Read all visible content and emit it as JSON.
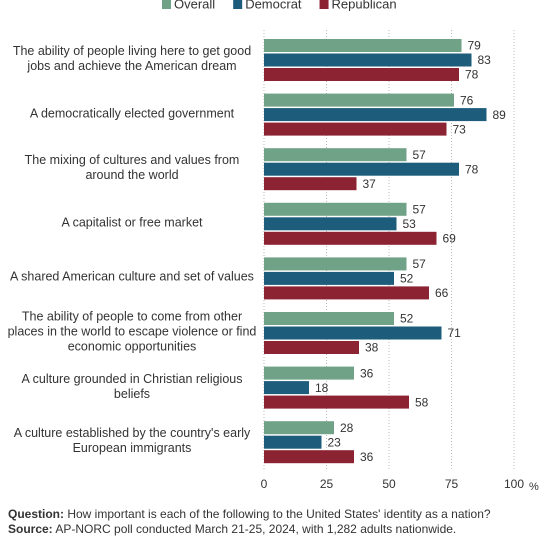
{
  "chart_data": {
    "type": "grouped-hbar",
    "categories": [
      "The ability of people living here to get good\njobs and achieve the American dream",
      "A democratically elected government",
      "The mixing of cultures and values from\naround the world",
      "A capitalist or free market",
      "A shared American culture and set of values",
      "The ability of people to come from other\nplaces in the world to escape violence or find\neconomic opportunities",
      "A culture grounded in Christian religious\nbeliefs",
      "A culture established by the country's early\nEuropean immigrants"
    ],
    "series": [
      {
        "name": "Overall",
        "color": "#6fa287",
        "values": [
          79,
          76,
          57,
          57,
          57,
          52,
          36,
          28
        ]
      },
      {
        "name": "Democrat",
        "color": "#1d5c7a",
        "values": [
          83,
          89,
          78,
          53,
          52,
          71,
          18,
          23
        ]
      },
      {
        "name": "Republican",
        "color": "#8b2332",
        "values": [
          78,
          73,
          37,
          69,
          66,
          38,
          58,
          36
        ]
      }
    ],
    "xlim": [
      0,
      100
    ],
    "xticks": [
      0,
      25,
      50,
      75,
      100
    ],
    "xlabel": "%",
    "grid": true
  },
  "footer": {
    "question_label": "Question:",
    "question": "How important is each of the following to the United States' identity as a nation?",
    "source_label": "Source:",
    "source": "AP-NORC poll conducted March 21-25, 2024, with 1,282 adults nationwide."
  }
}
